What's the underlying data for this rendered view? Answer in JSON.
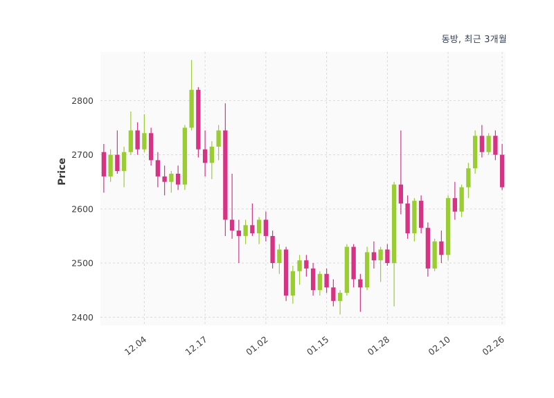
{
  "title": "동방, 최근 3개월",
  "chart_data": {
    "type": "candlestick",
    "title": "동방, 최근 3개월",
    "xlabel": "",
    "ylabel": "Price",
    "ylim": [
      2385,
      2890
    ],
    "y_ticks": [
      2400,
      2500,
      2600,
      2700,
      2800
    ],
    "x_ticks": [
      {
        "label": "12.04",
        "i": 6
      },
      {
        "label": "12.17",
        "i": 15
      },
      {
        "label": "01.02",
        "i": 24
      },
      {
        "label": "01.15",
        "i": 33
      },
      {
        "label": "01.28",
        "i": 42
      },
      {
        "label": "02.10",
        "i": 51
      },
      {
        "label": "02.26",
        "i": 59
      }
    ],
    "grid": "dashed",
    "legend": "none",
    "up_color": "#9acd32",
    "down_color": "#d63384",
    "plot_bg": "#fafafa",
    "grid_color": "#d9d9d9",
    "ohlc_order": [
      "open",
      "high",
      "low",
      "close"
    ],
    "candles": [
      [
        2705,
        2720,
        2630,
        2660
      ],
      [
        2660,
        2710,
        2650,
        2700
      ],
      [
        2700,
        2745,
        2665,
        2670
      ],
      [
        2670,
        2715,
        2640,
        2705
      ],
      [
        2705,
        2780,
        2700,
        2745
      ],
      [
        2745,
        2760,
        2700,
        2710
      ],
      [
        2710,
        2775,
        2705,
        2740
      ],
      [
        2740,
        2750,
        2680,
        2690
      ],
      [
        2690,
        2705,
        2640,
        2660
      ],
      [
        2660,
        2680,
        2625,
        2650
      ],
      [
        2650,
        2670,
        2630,
        2665
      ],
      [
        2665,
        2680,
        2635,
        2645
      ],
      [
        2645,
        2755,
        2635,
        2750
      ],
      [
        2750,
        2875,
        2745,
        2820
      ],
      [
        2820,
        2825,
        2695,
        2710
      ],
      [
        2710,
        2745,
        2660,
        2685
      ],
      [
        2685,
        2725,
        2655,
        2715
      ],
      [
        2715,
        2755,
        2690,
        2745
      ],
      [
        2745,
        2795,
        2550,
        2580
      ],
      [
        2580,
        2665,
        2545,
        2560
      ],
      [
        2560,
        2580,
        2500,
        2550
      ],
      [
        2550,
        2580,
        2535,
        2570
      ],
      [
        2570,
        2610,
        2550,
        2555
      ],
      [
        2555,
        2585,
        2535,
        2580
      ],
      [
        2580,
        2595,
        2540,
        2550
      ],
      [
        2550,
        2560,
        2490,
        2500
      ],
      [
        2500,
        2535,
        2480,
        2525
      ],
      [
        2525,
        2530,
        2430,
        2440
      ],
      [
        2440,
        2495,
        2425,
        2485
      ],
      [
        2485,
        2515,
        2460,
        2505
      ],
      [
        2505,
        2515,
        2475,
        2490
      ],
      [
        2490,
        2500,
        2440,
        2450
      ],
      [
        2450,
        2485,
        2440,
        2480
      ],
      [
        2480,
        2490,
        2445,
        2455
      ],
      [
        2455,
        2470,
        2420,
        2430
      ],
      [
        2430,
        2450,
        2405,
        2445
      ],
      [
        2445,
        2535,
        2440,
        2530
      ],
      [
        2530,
        2535,
        2455,
        2470
      ],
      [
        2470,
        2480,
        2410,
        2455
      ],
      [
        2455,
        2530,
        2450,
        2520
      ],
      [
        2520,
        2540,
        2490,
        2505
      ],
      [
        2505,
        2530,
        2465,
        2525
      ],
      [
        2525,
        2535,
        2495,
        2500
      ],
      [
        2500,
        2650,
        2420,
        2645
      ],
      [
        2645,
        2745,
        2590,
        2610
      ],
      [
        2610,
        2625,
        2545,
        2555
      ],
      [
        2555,
        2620,
        2540,
        2615
      ],
      [
        2615,
        2625,
        2555,
        2565
      ],
      [
        2565,
        2575,
        2475,
        2490
      ],
      [
        2490,
        2545,
        2485,
        2540
      ],
      [
        2540,
        2560,
        2500,
        2515
      ],
      [
        2515,
        2625,
        2505,
        2620
      ],
      [
        2620,
        2650,
        2580,
        2595
      ],
      [
        2595,
        2645,
        2585,
        2640
      ],
      [
        2640,
        2685,
        2620,
        2675
      ],
      [
        2675,
        2745,
        2665,
        2735
      ],
      [
        2735,
        2755,
        2695,
        2705
      ],
      [
        2705,
        2740,
        2700,
        2735
      ],
      [
        2735,
        2745,
        2690,
        2700
      ],
      [
        2700,
        2720,
        2635,
        2640
      ]
    ]
  }
}
